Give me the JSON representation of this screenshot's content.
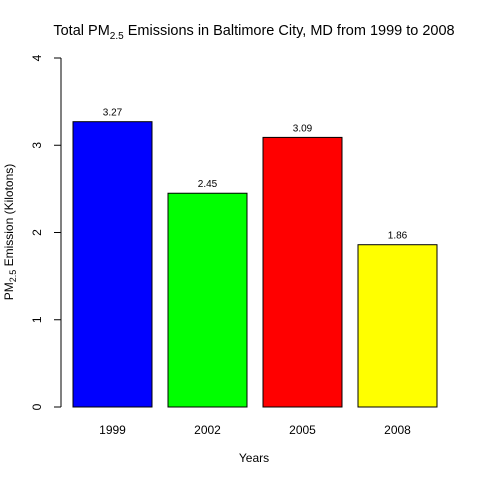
{
  "chart_data": {
    "type": "bar",
    "title": {
      "prefix": "Total PM",
      "subscript": "2.5",
      "suffix": " Emissions in Baltimore City, MD from 1999 to 2008"
    },
    "xlabel": "Years",
    "ylabel": {
      "prefix": "PM",
      "subscript": "2.5",
      "suffix": " Emission (Kilotons)"
    },
    "categories": [
      "1999",
      "2002",
      "2005",
      "2008"
    ],
    "values": [
      3.27,
      2.45,
      3.09,
      1.86
    ],
    "data_labels": [
      "3.27",
      "2.45",
      "3.09",
      "1.86"
    ],
    "colors": [
      "#0000ff",
      "#00ff00",
      "#ff0000",
      "#ffff00"
    ],
    "ylim": [
      0,
      4
    ],
    "yticks": [
      "0",
      "1",
      "2",
      "3",
      "4"
    ],
    "grid": false,
    "legend": "none"
  }
}
